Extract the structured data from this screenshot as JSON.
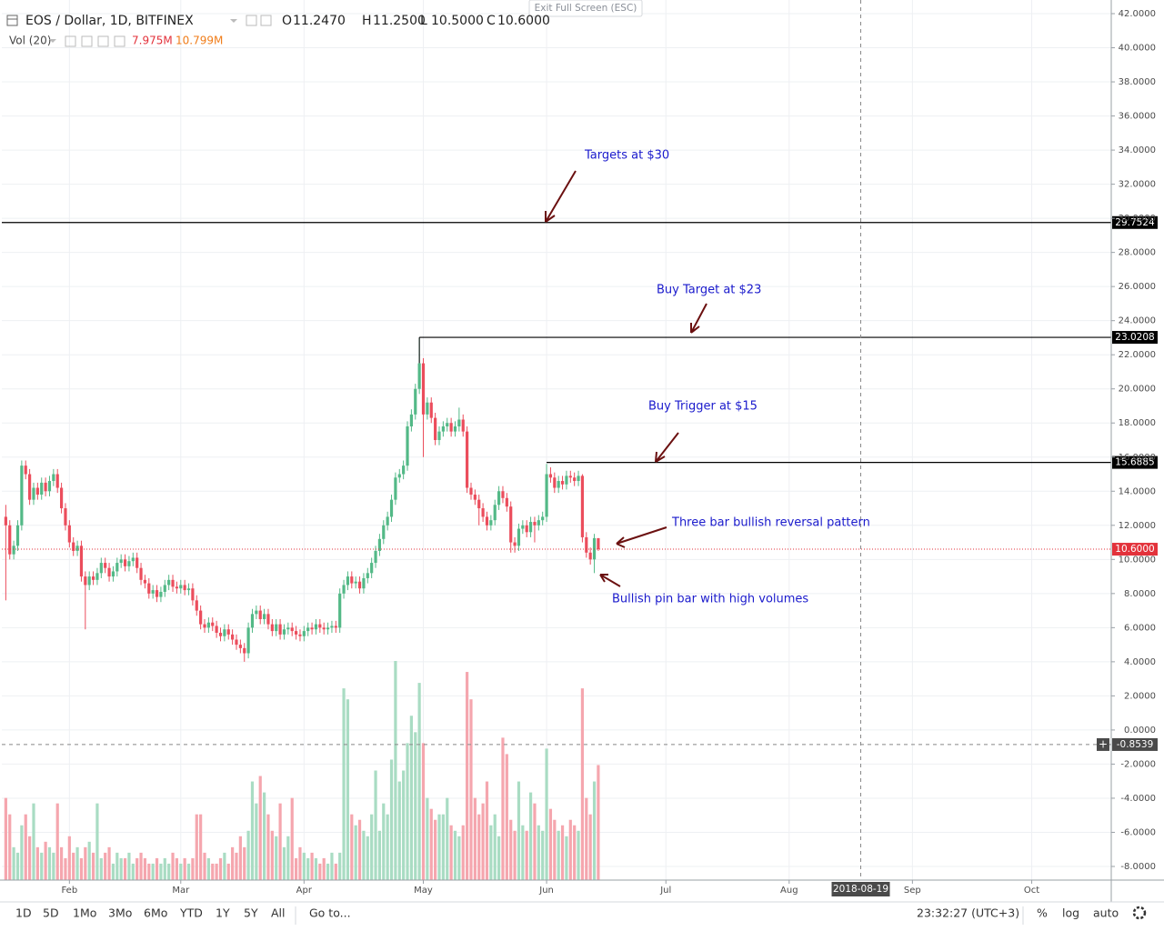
{
  "header": {
    "symbol": "EOS / Dollar, 1D, BITFINEX",
    "exit": "Exit Full Screen (ESC)",
    "ohlc": [
      {
        "key": "O",
        "value": "11.2470"
      },
      {
        "key": "H",
        "value": "11.2500"
      },
      {
        "key": "L",
        "value": "10.5000"
      },
      {
        "key": "C",
        "value": "10.6000"
      }
    ],
    "volume": {
      "name": "Vol (20)",
      "values": [
        "7.975M",
        "10.799M"
      ]
    }
  },
  "chart_data": {
    "type": "candlestick",
    "ohlc": [
      [
        12.5,
        13.2,
        7.6,
        12.0
      ],
      [
        12.0,
        12.3,
        10.0,
        10.3
      ],
      [
        10.3,
        11.1,
        10.0,
        10.8
      ],
      [
        10.8,
        12.3,
        10.5,
        12.0
      ],
      [
        12.0,
        15.8,
        11.7,
        15.5
      ],
      [
        15.5,
        15.8,
        14.7,
        15.0
      ],
      [
        15.0,
        15.3,
        13.2,
        13.5
      ],
      [
        13.5,
        14.5,
        13.2,
        14.2
      ],
      [
        14.2,
        14.5,
        13.5,
        13.8
      ],
      [
        13.8,
        14.8,
        13.5,
        14.5
      ],
      [
        14.5,
        14.8,
        13.7,
        14.0
      ],
      [
        14.0,
        14.9,
        13.7,
        14.6
      ],
      [
        14.6,
        15.3,
        14.3,
        15.0
      ],
      [
        15.0,
        15.3,
        13.9,
        14.2
      ],
      [
        14.2,
        14.5,
        12.7,
        13.0
      ],
      [
        13.0,
        13.3,
        11.7,
        12.0
      ],
      [
        12.0,
        12.3,
        10.7,
        11.0
      ],
      [
        11.0,
        11.3,
        10.2,
        10.5
      ],
      [
        10.5,
        11.1,
        10.2,
        10.8
      ],
      [
        10.8,
        11.1,
        8.7,
        9.0
      ],
      [
        9.0,
        9.3,
        5.9,
        8.5
      ],
      [
        8.5,
        9.3,
        8.2,
        9.0
      ],
      [
        9.0,
        9.3,
        8.5,
        8.8
      ],
      [
        8.8,
        9.5,
        8.5,
        9.2
      ],
      [
        9.2,
        10.1,
        8.9,
        9.8
      ],
      [
        9.8,
        10.1,
        9.2,
        9.5
      ],
      [
        9.5,
        9.8,
        8.7,
        9.0
      ],
      [
        9.0,
        9.6,
        8.7,
        9.3
      ],
      [
        9.3,
        10.1,
        9.0,
        9.8
      ],
      [
        9.8,
        10.3,
        9.5,
        10.0
      ],
      [
        10.0,
        10.3,
        9.3,
        9.6
      ],
      [
        9.6,
        10.2,
        9.3,
        9.9
      ],
      [
        9.9,
        10.4,
        9.6,
        10.1
      ],
      [
        10.1,
        10.4,
        9.2,
        9.5
      ],
      [
        9.5,
        9.8,
        8.5,
        8.8
      ],
      [
        8.8,
        9.1,
        8.3,
        8.6
      ],
      [
        8.6,
        8.9,
        7.7,
        8.0
      ],
      [
        8.0,
        8.5,
        7.7,
        8.2
      ],
      [
        8.2,
        8.5,
        7.5,
        7.8
      ],
      [
        7.8,
        8.4,
        7.5,
        8.1
      ],
      [
        8.1,
        8.8,
        7.8,
        8.5
      ],
      [
        8.5,
        9.1,
        8.2,
        8.8
      ],
      [
        8.8,
        9.1,
        8.1,
        8.4
      ],
      [
        8.4,
        8.7,
        8.0,
        8.3
      ],
      [
        8.3,
        8.8,
        8.0,
        8.5
      ],
      [
        8.5,
        8.8,
        7.9,
        8.2
      ],
      [
        8.2,
        8.6,
        7.9,
        8.3
      ],
      [
        8.3,
        8.6,
        7.3,
        7.6
      ],
      [
        7.6,
        7.9,
        6.7,
        7.0
      ],
      [
        7.0,
        7.3,
        5.9,
        6.2
      ],
      [
        6.2,
        6.5,
        5.7,
        6.0
      ],
      [
        6.0,
        6.6,
        5.7,
        6.3
      ],
      [
        6.3,
        6.6,
        5.8,
        6.1
      ],
      [
        6.1,
        6.4,
        5.4,
        5.7
      ],
      [
        5.7,
        6.0,
        5.2,
        5.5
      ],
      [
        5.5,
        6.2,
        5.2,
        5.9
      ],
      [
        5.9,
        6.2,
        5.3,
        5.6
      ],
      [
        5.6,
        5.9,
        5.0,
        5.3
      ],
      [
        5.3,
        5.6,
        4.7,
        5.0
      ],
      [
        5.0,
        5.3,
        4.5,
        4.8
      ],
      [
        4.8,
        5.1,
        4.0,
        4.5
      ],
      [
        4.5,
        6.3,
        4.2,
        6.0
      ],
      [
        6.0,
        7.1,
        5.7,
        6.8
      ],
      [
        6.8,
        7.3,
        6.5,
        7.0
      ],
      [
        7.0,
        7.3,
        6.2,
        6.5
      ],
      [
        6.5,
        7.1,
        6.2,
        6.8
      ],
      [
        6.8,
        7.1,
        5.9,
        6.2
      ],
      [
        6.2,
        6.5,
        5.5,
        5.8
      ],
      [
        5.8,
        6.5,
        5.5,
        6.2
      ],
      [
        6.2,
        6.5,
        5.3,
        5.6
      ],
      [
        5.6,
        6.2,
        5.3,
        5.9
      ],
      [
        5.9,
        6.3,
        5.6,
        6.0
      ],
      [
        6.0,
        6.3,
        5.5,
        5.8
      ],
      [
        5.8,
        6.1,
        5.3,
        5.6
      ],
      [
        5.6,
        5.9,
        5.2,
        5.5
      ],
      [
        5.5,
        6.1,
        5.2,
        5.8
      ],
      [
        5.8,
        6.3,
        5.5,
        6.0
      ],
      [
        6.0,
        6.3,
        5.6,
        5.9
      ],
      [
        5.9,
        6.5,
        5.6,
        6.2
      ],
      [
        6.2,
        6.5,
        5.7,
        6.0
      ],
      [
        6.0,
        6.3,
        5.6,
        5.9
      ],
      [
        5.9,
        6.3,
        5.6,
        6.0
      ],
      [
        6.0,
        6.4,
        5.7,
        6.1
      ],
      [
        6.1,
        6.4,
        5.7,
        6.0
      ],
      [
        6.0,
        8.3,
        5.7,
        8.0
      ],
      [
        8.0,
        8.8,
        7.7,
        8.5
      ],
      [
        8.5,
        9.3,
        8.2,
        9.0
      ],
      [
        9.0,
        9.3,
        8.3,
        8.6
      ],
      [
        8.6,
        9.0,
        8.3,
        8.7
      ],
      [
        8.7,
        9.0,
        8.0,
        8.3
      ],
      [
        8.3,
        9.2,
        8.0,
        8.9
      ],
      [
        8.9,
        9.5,
        8.6,
        9.2
      ],
      [
        9.2,
        10.1,
        8.9,
        9.8
      ],
      [
        9.8,
        10.8,
        9.5,
        10.5
      ],
      [
        10.5,
        11.5,
        10.2,
        11.2
      ],
      [
        11.2,
        12.3,
        10.9,
        12.0
      ],
      [
        12.0,
        12.8,
        11.7,
        12.5
      ],
      [
        12.5,
        13.8,
        12.2,
        13.5
      ],
      [
        13.5,
        15.1,
        13.2,
        14.8
      ],
      [
        14.8,
        15.3,
        14.5,
        15.0
      ],
      [
        15.0,
        15.8,
        14.7,
        15.5
      ],
      [
        15.5,
        18.1,
        15.2,
        17.8
      ],
      [
        17.8,
        18.8,
        17.5,
        18.5
      ],
      [
        18.5,
        20.3,
        18.2,
        20.0
      ],
      [
        20.0,
        23.0,
        19.7,
        21.5
      ],
      [
        21.5,
        21.8,
        16.0,
        18.5
      ],
      [
        18.5,
        19.5,
        18.2,
        19.2
      ],
      [
        19.2,
        19.5,
        18.0,
        18.3
      ],
      [
        18.3,
        18.6,
        16.7,
        17.0
      ],
      [
        17.0,
        17.8,
        16.7,
        17.5
      ],
      [
        17.5,
        18.1,
        17.2,
        17.8
      ],
      [
        17.8,
        18.3,
        17.5,
        18.0
      ],
      [
        18.0,
        18.3,
        17.2,
        17.5
      ],
      [
        17.5,
        18.1,
        17.2,
        17.8
      ],
      [
        17.8,
        18.9,
        17.5,
        18.2
      ],
      [
        18.2,
        18.5,
        17.2,
        17.5
      ],
      [
        17.5,
        17.8,
        13.9,
        14.2
      ],
      [
        14.2,
        14.5,
        13.5,
        13.8
      ],
      [
        13.8,
        14.1,
        13.2,
        13.5
      ],
      [
        13.5,
        13.8,
        12.0,
        13.0
      ],
      [
        13.0,
        13.3,
        12.2,
        12.5
      ],
      [
        12.5,
        12.8,
        11.7,
        12.0
      ],
      [
        12.0,
        12.6,
        11.7,
        12.3
      ],
      [
        12.3,
        13.5,
        12.0,
        13.2
      ],
      [
        13.2,
        14.3,
        12.9,
        14.0
      ],
      [
        14.0,
        14.3,
        13.3,
        13.6
      ],
      [
        13.6,
        13.9,
        12.8,
        13.1
      ],
      [
        13.1,
        13.4,
        10.4,
        11.0
      ],
      [
        11.0,
        11.3,
        10.4,
        10.8
      ],
      [
        10.8,
        12.1,
        10.5,
        11.8
      ],
      [
        11.8,
        12.3,
        11.5,
        12.0
      ],
      [
        12.0,
        12.3,
        11.3,
        11.6
      ],
      [
        11.6,
        12.5,
        11.3,
        12.2
      ],
      [
        12.2,
        12.5,
        11.0,
        12.0
      ],
      [
        12.0,
        12.6,
        11.7,
        12.3
      ],
      [
        12.3,
        12.8,
        12.0,
        12.5
      ],
      [
        12.5,
        15.6,
        12.2,
        15.0
      ],
      [
        15.0,
        15.4,
        14.5,
        14.8
      ],
      [
        14.8,
        15.1,
        13.9,
        14.2
      ],
      [
        14.2,
        14.9,
        13.9,
        14.6
      ],
      [
        14.6,
        14.9,
        14.1,
        14.4
      ],
      [
        14.4,
        15.2,
        14.1,
        14.9
      ],
      [
        14.9,
        15.2,
        14.5,
        14.8
      ],
      [
        14.8,
        15.1,
        14.3,
        14.6
      ],
      [
        14.6,
        15.2,
        14.3,
        14.9
      ],
      [
        14.9,
        15.0,
        11.0,
        11.3
      ],
      [
        11.3,
        11.6,
        10.1,
        10.4
      ],
      [
        10.4,
        10.7,
        9.7,
        10.0
      ],
      [
        10.0,
        11.5,
        9.2,
        11.25
      ],
      [
        11.247,
        11.25,
        10.5,
        10.6
      ]
    ],
    "volumes": [
      15,
      12,
      6,
      5,
      10,
      12,
      8,
      14,
      6,
      5,
      7,
      6,
      5,
      14,
      6,
      4,
      8,
      5,
      6,
      4,
      6,
      7,
      5,
      14,
      4,
      5,
      6,
      3,
      5,
      4,
      4,
      5,
      3,
      4,
      5,
      4,
      3,
      3,
      4,
      3,
      4,
      3,
      5,
      4,
      3,
      4,
      3,
      4,
      12,
      12,
      5,
      4,
      3,
      3,
      4,
      5,
      3,
      6,
      5,
      8,
      6,
      9,
      18,
      14,
      19,
      16,
      12,
      9,
      8,
      14,
      6,
      8,
      15,
      4,
      6,
      5,
      4,
      5,
      4,
      3,
      4,
      3,
      5,
      3,
      5,
      35,
      33,
      12,
      10,
      11,
      9,
      8,
      12,
      20,
      9,
      14,
      12,
      22,
      40,
      18,
      20,
      25,
      30,
      27,
      36,
      25,
      15,
      13,
      11,
      12,
      12,
      15,
      10,
      9,
      8,
      10,
      38,
      33,
      15,
      12,
      14,
      18,
      10,
      12,
      8,
      26,
      23,
      11,
      9,
      18,
      10,
      9,
      16,
      14,
      10,
      9,
      24,
      13,
      11,
      9,
      10,
      8,
      11,
      10,
      9,
      35,
      15,
      12,
      18,
      21
    ],
    "volume_ylim": [
      0,
      40
    ],
    "up_color": "#53b987",
    "down_color": "#eb4d5c",
    "volume_up_color": "#a9dcc3",
    "volume_down_color": "#f5a6ae",
    "xlim": [
      -1,
      278
    ],
    "xticks": [
      {
        "value": 16,
        "label": "Feb"
      },
      {
        "value": 44,
        "label": "Mar"
      },
      {
        "value": 75,
        "label": "Apr"
      },
      {
        "value": 105,
        "label": "May"
      },
      {
        "value": 136,
        "label": "Jun"
      },
      {
        "value": 166,
        "label": "Jul"
      },
      {
        "value": 197,
        "label": "Aug"
      },
      {
        "value": 228,
        "label": "Sep"
      },
      {
        "value": 258,
        "label": "Oct"
      }
    ],
    "ylim": [
      -8.8,
      42.8
    ],
    "yticks": [
      {
        "value": 42,
        "label": "42.0000"
      },
      {
        "value": 40,
        "label": "40.0000"
      },
      {
        "value": 38,
        "label": "38.0000"
      },
      {
        "value": 36,
        "label": "36.0000"
      },
      {
        "value": 34,
        "label": "34.0000"
      },
      {
        "value": 32,
        "label": "32.0000"
      },
      {
        "value": 30,
        "label": "30.0000"
      },
      {
        "value": 28,
        "label": "28.0000"
      },
      {
        "value": 26,
        "label": "26.0000"
      },
      {
        "value": 24,
        "label": "24.0000"
      },
      {
        "value": 22,
        "label": "22.0000"
      },
      {
        "value": 20,
        "label": "20.0000"
      },
      {
        "value": 18,
        "label": "18.0000"
      },
      {
        "value": 16,
        "label": "16.0000"
      },
      {
        "value": 14,
        "label": "14.0000"
      },
      {
        "value": 12,
        "label": "12.0000"
      },
      {
        "value": 10,
        "label": "10.0000"
      },
      {
        "value": 8,
        "label": "8.0000"
      },
      {
        "value": 6,
        "label": "6.0000"
      },
      {
        "value": 4,
        "label": "4.0000"
      },
      {
        "value": 2,
        "label": "2.0000"
      },
      {
        "value": 0,
        "label": "0.0000"
      },
      {
        "value": -2,
        "label": "-2.0000"
      },
      {
        "value": -4,
        "label": "-4.0000"
      },
      {
        "value": -6,
        "label": "-6.0000"
      },
      {
        "value": -8,
        "label": "-8.0000"
      }
    ],
    "grid": true,
    "levels": [
      {
        "value": 29.7524,
        "label": "29.7524",
        "from": -1,
        "color": "#000000"
      },
      {
        "value": 23.0208,
        "label": "23.0208",
        "from": 104,
        "color": "#000000"
      },
      {
        "value": 15.6885,
        "label": "15.6885",
        "from": 136,
        "color": "#000000"
      },
      {
        "value": 10.6,
        "label": "10.6000",
        "from": -1,
        "color": "#e3323b"
      }
    ],
    "crosshair": {
      "x": {
        "value": 215,
        "label": "2018-08-19"
      },
      "y": {
        "value": -0.8539,
        "label": "-0.8539"
      }
    },
    "annotations": [
      "Targets at $30",
      "Buy Target at $23",
      "Buy Trigger at $15",
      "Three bar bullish reversal pattern",
      "Bullish pin bar with high volumes"
    ]
  },
  "toolbar": {
    "ranges": [
      "1D",
      "5D",
      "1Mo",
      "3Mo",
      "6Mo",
      "YTD",
      "1Y",
      "5Y",
      "All"
    ],
    "goto": "Go to...",
    "time": "23:32:27 (UTC+3)",
    "percent": "%",
    "log": "log",
    "auto": "auto"
  }
}
